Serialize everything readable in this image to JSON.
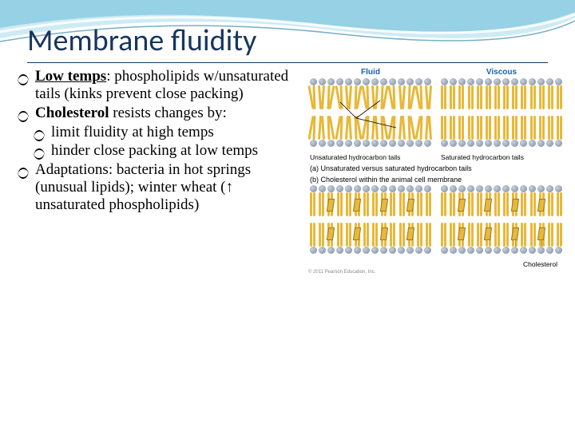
{
  "title": "Membrane fluidity",
  "bullets": {
    "b1_bold": "Low temps",
    "b1_rest": ": phospholipids w/unsaturated tails (kinks prevent close packing)",
    "b2_bold": "Cholesterol",
    "b2_rest": " resists changes by:",
    "b2a": "limit fluidity at high temps",
    "b2b": "hinder close packing at low temps",
    "b3": "Adaptations: bacteria in hot springs (unusual lipids); winter wheat (↑ unsaturated phospholipids)"
  },
  "figure": {
    "panel_a_label": "Fluid",
    "panel_b_label": "Viscous",
    "panel_a_caption": "Unsaturated hydrocarbon tails",
    "panel_b_caption": "Saturated hydrocarbon tails",
    "caption_a": "(a) Unsaturated versus saturated hydrocarbon tails",
    "caption_b": "(b) Cholesterol within the animal cell membrane",
    "cholesterol_label": "Cholesterol",
    "copyright": "© 2011 Pearson Education, Inc.",
    "colors": {
      "head": "#7a8aa0",
      "tail": "#e8b838",
      "label": "#1860b0",
      "title": "#17365d"
    },
    "heads_per_row": 14
  }
}
